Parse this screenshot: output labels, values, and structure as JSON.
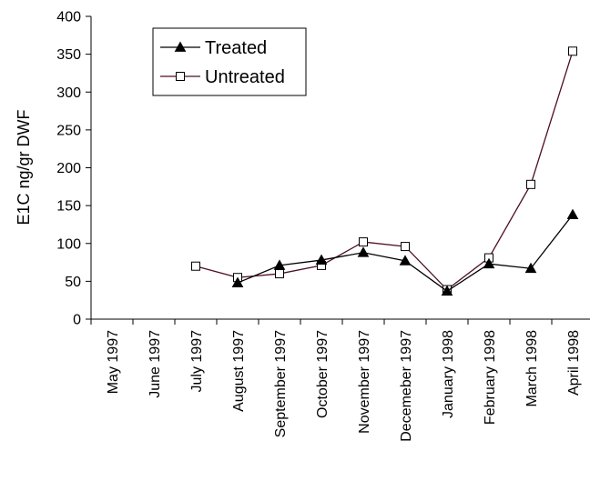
{
  "chart_data": {
    "type": "line",
    "title": "",
    "xlabel": "",
    "ylabel": "E1C ng/gr DWF",
    "ylim": [
      0,
      400
    ],
    "yticks": [
      0,
      50,
      100,
      150,
      200,
      250,
      300,
      350,
      400
    ],
    "categories": [
      "May 1997",
      "June 1997",
      "July 1997",
      "August 1997",
      "September 1997",
      "October 1997",
      "November 1997",
      "Decemeber 1997",
      "January 1998",
      "February 1998",
      "March 1998",
      "April 1998"
    ],
    "series": [
      {
        "name": "Treated",
        "marker": "filled-triangle",
        "color": "#000000",
        "values": [
          null,
          null,
          null,
          48,
          71,
          78,
          88,
          77,
          37,
          73,
          67,
          138
        ]
      },
      {
        "name": "Untreated",
        "marker": "hollow-square",
        "color": "#4d0f1f",
        "values": [
          null,
          null,
          70,
          55,
          60,
          71,
          102,
          96,
          39,
          81,
          178,
          354
        ]
      }
    ],
    "legend_position": "top-left",
    "grid": false
  }
}
